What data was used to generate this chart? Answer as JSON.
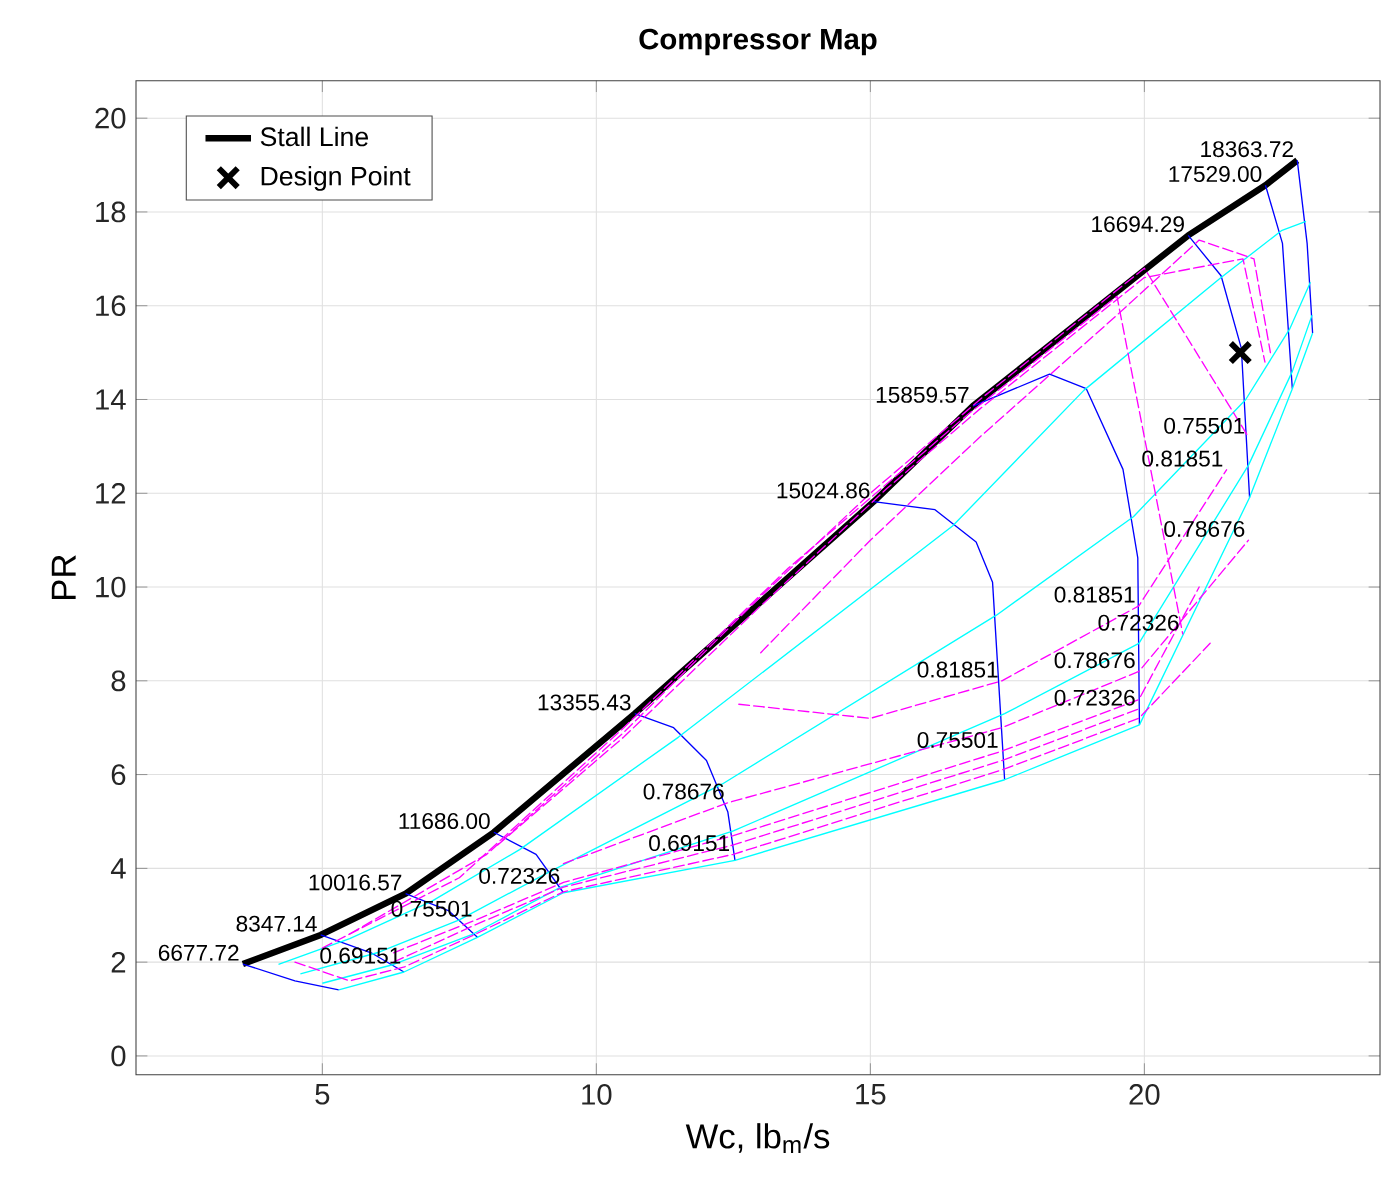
{
  "chart_data": {
    "type": "line",
    "title": "Compressor Map",
    "xlabel": "Wc, lb$_{m}$/s",
    "ylabel": "PR",
    "xlim": [
      1.6,
      24.3
    ],
    "ylim": [
      -0.4,
      20.8
    ],
    "xticks": [
      5,
      10,
      15,
      20
    ],
    "yticks": [
      0,
      2,
      4,
      6,
      8,
      10,
      12,
      14,
      16,
      18,
      20
    ],
    "grid": true,
    "legend": "top left",
    "series": [
      {
        "name": "Stall Line",
        "color": "#000000",
        "x": [
          3.55,
          4.97,
          6.52,
          8.13,
          10.7,
          15.06,
          16.87,
          20.8,
          22.21,
          22.79
        ],
        "values": [
          1.96,
          2.58,
          3.46,
          4.77,
          7.3,
          11.82,
          13.86,
          17.5,
          18.57,
          19.1
        ]
      },
      {
        "name": "Design Point",
        "type": "scatter",
        "marker": "cross",
        "color": "#000000",
        "x": [
          21.75
        ],
        "values": [
          15.0
        ]
      },
      {
        "color": "#0000ff",
        "x": [
          3.55,
          4.5,
          5.3
        ],
        "values": [
          1.96,
          1.6,
          1.41
        ]
      },
      {
        "color": "#0000ff",
        "x": [
          4.97,
          5.89,
          6.49
        ],
        "values": [
          2.58,
          2.2,
          1.79
        ]
      },
      {
        "color": "#0000ff",
        "x": [
          6.52,
          7.3,
          7.83
        ],
        "values": [
          3.46,
          3.1,
          2.53
        ]
      },
      {
        "color": "#0000ff",
        "x": [
          8.13,
          8.9,
          9.4
        ],
        "values": [
          4.77,
          4.3,
          3.48
        ]
      },
      {
        "color": "#0000ff",
        "x": [
          10.7,
          11.41,
          12.01,
          12.4,
          12.53
        ],
        "values": [
          7.3,
          7.0,
          6.3,
          5.2,
          4.17
        ]
      },
      {
        "color": "#0000ff",
        "x": [
          15.06,
          16.18,
          16.93,
          17.23,
          17.45
        ],
        "values": [
          11.82,
          11.65,
          10.96,
          10.1,
          5.89
        ]
      },
      {
        "color": "#0000ff",
        "x": [
          16.87,
          18.27,
          18.94,
          19.61,
          19.88,
          19.91
        ],
        "values": [
          13.86,
          14.54,
          14.23,
          12.51,
          10.62,
          7.06
        ]
      },
      {
        "color": "#0000ff",
        "x": [
          20.8,
          21.4,
          21.77,
          21.92
        ],
        "values": [
          17.5,
          16.64,
          15.09,
          11.91
        ]
      },
      {
        "color": "#0000ff",
        "x": [
          22.21,
          22.52,
          22.7
        ],
        "values": [
          18.57,
          17.33,
          14.23
        ]
      },
      {
        "color": "#0000ff",
        "x": [
          22.79,
          22.97,
          23.07
        ],
        "values": [
          19.1,
          17.33,
          15.42
        ]
      },
      {
        "color": "#00ffff",
        "x": [
          5.3,
          6.49,
          7.83,
          9.4,
          12.53,
          17.45,
          19.91,
          21.92,
          22.7,
          23.07
        ],
        "values": [
          1.41,
          1.79,
          2.53,
          3.48,
          4.17,
          5.89,
          7.06,
          11.91,
          14.23,
          15.42
        ]
      },
      {
        "color": "#00ffff",
        "x": [
          4.2,
          5.5,
          7.0,
          8.6,
          11.5,
          16.5,
          18.9,
          21.4,
          22.5,
          22.95
        ],
        "values": [
          1.95,
          2.5,
          3.3,
          4.4,
          6.8,
          11.3,
          14.2,
          16.6,
          17.6,
          17.8
        ]
      },
      {
        "color": "#00ffff",
        "x": [
          4.6,
          6.0,
          7.5,
          9.1,
          12.3,
          17.3,
          19.8,
          21.85,
          22.65,
          23.03
        ],
        "values": [
          1.75,
          2.2,
          2.9,
          3.9,
          5.8,
          9.4,
          11.5,
          14.0,
          15.5,
          16.5
        ]
      },
      {
        "color": "#00ffff",
        "x": [
          5.0,
          6.3,
          7.75,
          9.35,
          12.5,
          17.45,
          19.9,
          21.9,
          22.7,
          23.06
        ],
        "values": [
          1.55,
          1.95,
          2.6,
          3.6,
          4.8,
          7.3,
          8.8,
          12.6,
          14.6,
          15.8
        ]
      },
      {
        "color": "#ff00ff",
        "line_style": "dashed",
        "x": [
          13.0,
          15.0,
          17.0,
          19.5,
          21.0,
          22.0,
          22.3
        ],
        "values": [
          8.6,
          11.0,
          13.2,
          15.8,
          17.4,
          17.0,
          15.0
        ]
      },
      {
        "color": "#ff00ff",
        "line_style": "dashed",
        "x": [
          12.6,
          15.0,
          17.4,
          19.9,
          21.5
        ],
        "values": [
          7.5,
          7.2,
          8.0,
          9.6,
          12.5
        ]
      },
      {
        "color": "#ff00ff",
        "line_style": "dashed",
        "x": [
          8.2,
          10.5,
          13.0,
          15.3,
          17.0,
          20.0,
          21.8,
          22.2
        ],
        "values": [
          4.5,
          6.8,
          9.6,
          12.1,
          13.8,
          16.6,
          17.0,
          14.8
        ]
      },
      {
        "color": "#ff00ff",
        "line_style": "dashed",
        "x": [
          9.4,
          12.4,
          17.4,
          19.9,
          21.9
        ],
        "values": [
          4.1,
          5.4,
          7.0,
          8.2,
          11.0
        ]
      },
      {
        "color": "#ff00ff",
        "line_style": "dashed",
        "x": [
          5.5,
          8.0,
          10.5,
          13.0,
          15.0,
          17.0,
          20.0,
          21.9
        ],
        "values": [
          2.6,
          4.3,
          6.9,
          9.8,
          12.0,
          14.0,
          16.8,
          13.2
        ]
      },
      {
        "color": "#ff00ff",
        "line_style": "dashed",
        "x": [
          6.3,
          7.8,
          9.4,
          12.5,
          17.4,
          19.9,
          21.0
        ],
        "values": [
          2.2,
          2.9,
          3.7,
          4.7,
          6.5,
          7.6,
          10.0
        ]
      },
      {
        "color": "#ff00ff",
        "line_style": "dashed",
        "x": [
          5.0,
          7.5,
          10.5,
          13.5,
          16.8,
          19.5,
          20.7
        ],
        "values": [
          2.3,
          3.8,
          7.0,
          10.4,
          13.7,
          16.2,
          9.0
        ]
      },
      {
        "color": "#ff00ff",
        "line_style": "dashed",
        "x": [
          6.3,
          7.8,
          9.4,
          12.5,
          17.4,
          19.9
        ],
        "values": [
          2.0,
          2.8,
          3.6,
          4.5,
          6.3,
          7.4
        ]
      },
      {
        "color": "#ff00ff",
        "line_style": "dashed",
        "x": [
          4.5,
          5.5,
          6.5,
          7.8,
          9.4,
          12.5,
          17.4,
          19.9,
          21.2
        ],
        "values": [
          2.0,
          1.6,
          1.9,
          2.6,
          3.5,
          4.3,
          6.1,
          7.2,
          8.8
        ]
      }
    ],
    "annotations": [
      {
        "text": "6677.72",
        "x": 3.55,
        "y": 1.96
      },
      {
        "text": "8347.14",
        "x": 4.97,
        "y": 2.58
      },
      {
        "text": "10016.57",
        "x": 6.52,
        "y": 3.46
      },
      {
        "text": "11686.00",
        "x": 8.13,
        "y": 4.77
      },
      {
        "text": "13355.43",
        "x": 10.7,
        "y": 7.3
      },
      {
        "text": "15024.86",
        "x": 15.06,
        "y": 11.82
      },
      {
        "text": "15859.57",
        "x": 16.87,
        "y": 13.86
      },
      {
        "text": "16694.29",
        "x": 20.8,
        "y": 17.5
      },
      {
        "text": "17529.00",
        "x": 22.21,
        "y": 18.57
      },
      {
        "text": "18363.72",
        "x": 22.79,
        "y": 19.1
      },
      {
        "text": "0.78676",
        "x": 12.4,
        "y": 5.4
      },
      {
        "text": "0.75501",
        "x": 7.8,
        "y": 2.9
      },
      {
        "text": "0.72326",
        "x": 9.4,
        "y": 3.6
      },
      {
        "text": "0.69151",
        "x": 6.5,
        "y": 1.9
      },
      {
        "text": "0.75501",
        "x": 21.9,
        "y": 13.2
      },
      {
        "text": "0.72326",
        "x": 20.7,
        "y": 9.0
      },
      {
        "text": "0.78676",
        "x": 21.9,
        "y": 11.0
      },
      {
        "text": "0.81851",
        "x": 17.4,
        "y": 8.0
      },
      {
        "text": "0.81851",
        "x": 19.9,
        "y": 9.6
      },
      {
        "text": "0.78676",
        "x": 19.9,
        "y": 8.2
      },
      {
        "text": "0.75501",
        "x": 17.4,
        "y": 6.5
      },
      {
        "text": "0.72326",
        "x": 19.9,
        "y": 7.4
      },
      {
        "text": "0.69151",
        "x": 12.5,
        "y": 4.3
      },
      {
        "text": "0.81851",
        "x": 21.5,
        "y": 12.5
      }
    ]
  }
}
